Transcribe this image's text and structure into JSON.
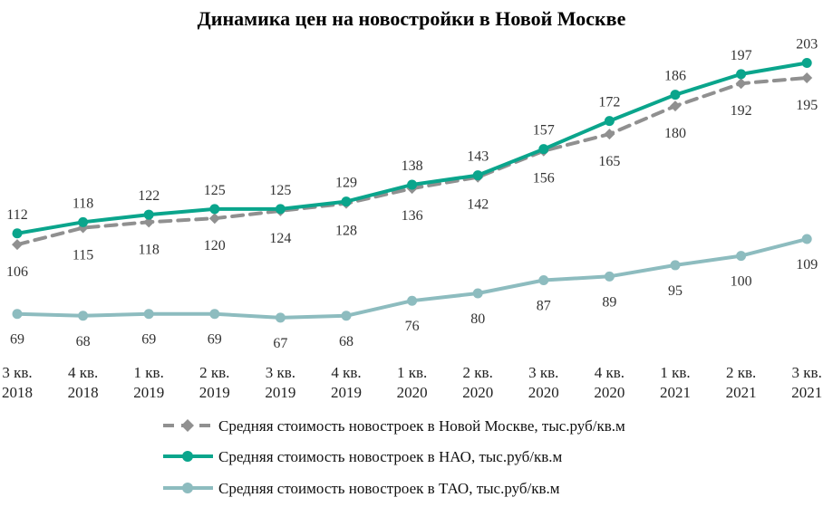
{
  "chart_data": {
    "type": "line",
    "title": "Динамика  цен на новостройки  в Новой  Москве",
    "categories": [
      [
        "3 кв.",
        "2018"
      ],
      [
        "4 кв.",
        "2018"
      ],
      [
        "1 кв.",
        "2019"
      ],
      [
        "2 кв.",
        "2019"
      ],
      [
        "3 кв.",
        "2019"
      ],
      [
        "4 кв.",
        "2019"
      ],
      [
        "1 кв.",
        "2020"
      ],
      [
        "2 кв.",
        "2020"
      ],
      [
        "3 кв.",
        "2020"
      ],
      [
        "4 кв.",
        "2020"
      ],
      [
        "1 кв.",
        "2021"
      ],
      [
        "2 кв.",
        "2021"
      ],
      [
        "3 кв.",
        "2021"
      ]
    ],
    "series": [
      {
        "name": "Средняя стоимость новостроек в Новой Москве, тыс.руб/кв.м",
        "values": [
          106,
          115,
          118,
          120,
          124,
          128,
          136,
          142,
          156,
          165,
          180,
          192,
          195
        ],
        "color": "#909090",
        "style": "dashed",
        "label_position": "below"
      },
      {
        "name": "Средняя стоимость новостроек в НАО,  тыс.руб/кв.м",
        "values": [
          112,
          118,
          122,
          125,
          125,
          129,
          138,
          143,
          157,
          172,
          186,
          197,
          203
        ],
        "color": "#0aa58c",
        "style": "solid",
        "label_position": "above"
      },
      {
        "name": "Средняя стоимость новостроек в ТАО, тыс.руб/кв.м",
        "values": [
          69,
          68,
          69,
          69,
          67,
          68,
          76,
          80,
          87,
          89,
          95,
          100,
          109
        ],
        "color": "#8dbcbf",
        "style": "solid",
        "label_position": "below"
      }
    ],
    "legend_position": "bottom",
    "grid": false
  }
}
